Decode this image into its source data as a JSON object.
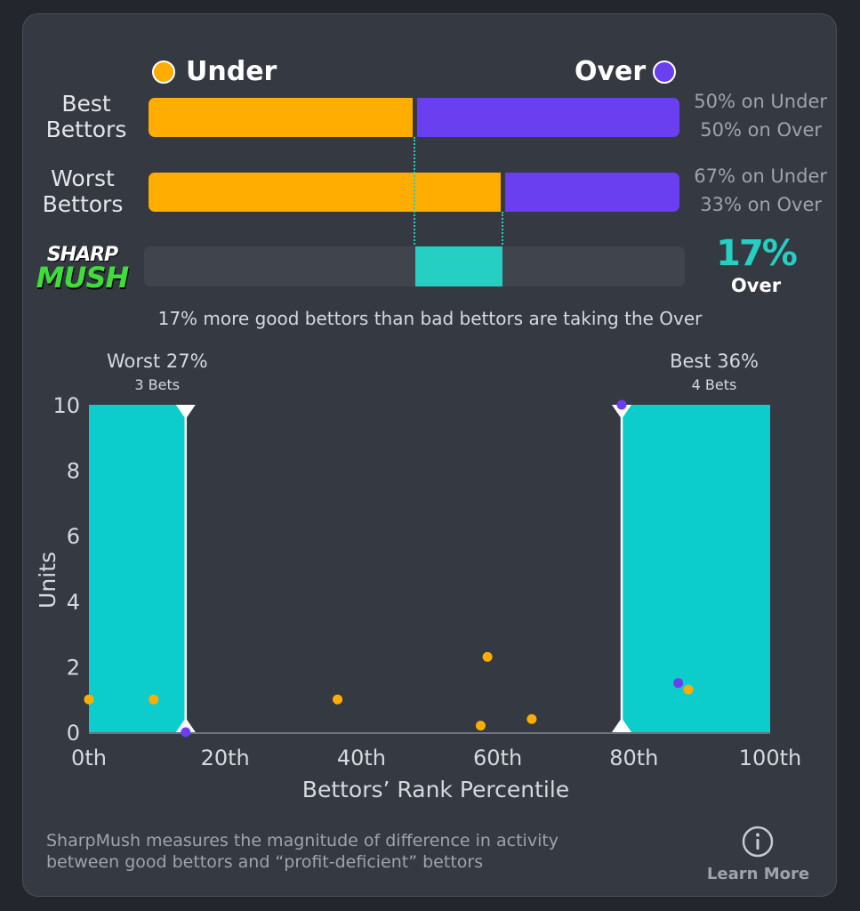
{
  "legend": {
    "under_label": "Under",
    "over_label": "Over"
  },
  "colors": {
    "under": "#ffad00",
    "over": "#6a3ff0",
    "accent": "#25cfc2",
    "band": "#0dcccc"
  },
  "rows": [
    {
      "label_line1": "Best",
      "label_line2": "Bettors",
      "under_pct": 50,
      "over_pct": 50,
      "under_text": "50% on Under",
      "over_text": "50% on Over"
    },
    {
      "label_line1": "Worst",
      "label_line2": "Bettors",
      "under_pct": 67,
      "over_pct": 33,
      "under_text": "67% on Under",
      "over_text": "33% on Over"
    }
  ],
  "logo": {
    "line1": "SHARP",
    "line2": "MUSH"
  },
  "mush": {
    "value_pct": 17,
    "value_text": "17%",
    "direction": "Over"
  },
  "summary_text": "17% more good bettors than bad bettors are taking the Over",
  "chart_data": {
    "type": "scatter",
    "xlabel": "Bettors’ Rank Percentile",
    "ylabel": "Units",
    "xlim": [
      0,
      100
    ],
    "ylim": [
      0,
      10
    ],
    "x_ticks": [
      "0th",
      "20th",
      "40th",
      "60th",
      "80th",
      "100th"
    ],
    "x_tick_values": [
      0,
      20,
      40,
      60,
      80,
      100
    ],
    "y_ticks": [
      0,
      2,
      4,
      6,
      8,
      10
    ],
    "grid": false,
    "worst_band": {
      "label": "Worst 27%",
      "sub": "3 Bets",
      "from": 0,
      "to": 14.2
    },
    "best_band": {
      "label": "Best 36%",
      "sub": "4 Bets",
      "from": 78.2,
      "to": 100
    },
    "series": [
      {
        "name": "Under",
        "points": [
          [
            0,
            1.0
          ],
          [
            9.5,
            1.0
          ],
          [
            36.5,
            1.0
          ],
          [
            57.5,
            0.2
          ],
          [
            58.5,
            2.3
          ],
          [
            65,
            0.4
          ],
          [
            88,
            1.3
          ]
        ]
      },
      {
        "name": "Over",
        "points": [
          [
            14.2,
            0.0
          ],
          [
            78.2,
            10.0
          ],
          [
            86.5,
            1.5
          ]
        ]
      }
    ]
  },
  "footer": {
    "line1": "SharpMush measures the magnitude of difference in activity",
    "line2": "between good bettors and “profit-deficient” bettors",
    "learn_more": "Learn More"
  }
}
